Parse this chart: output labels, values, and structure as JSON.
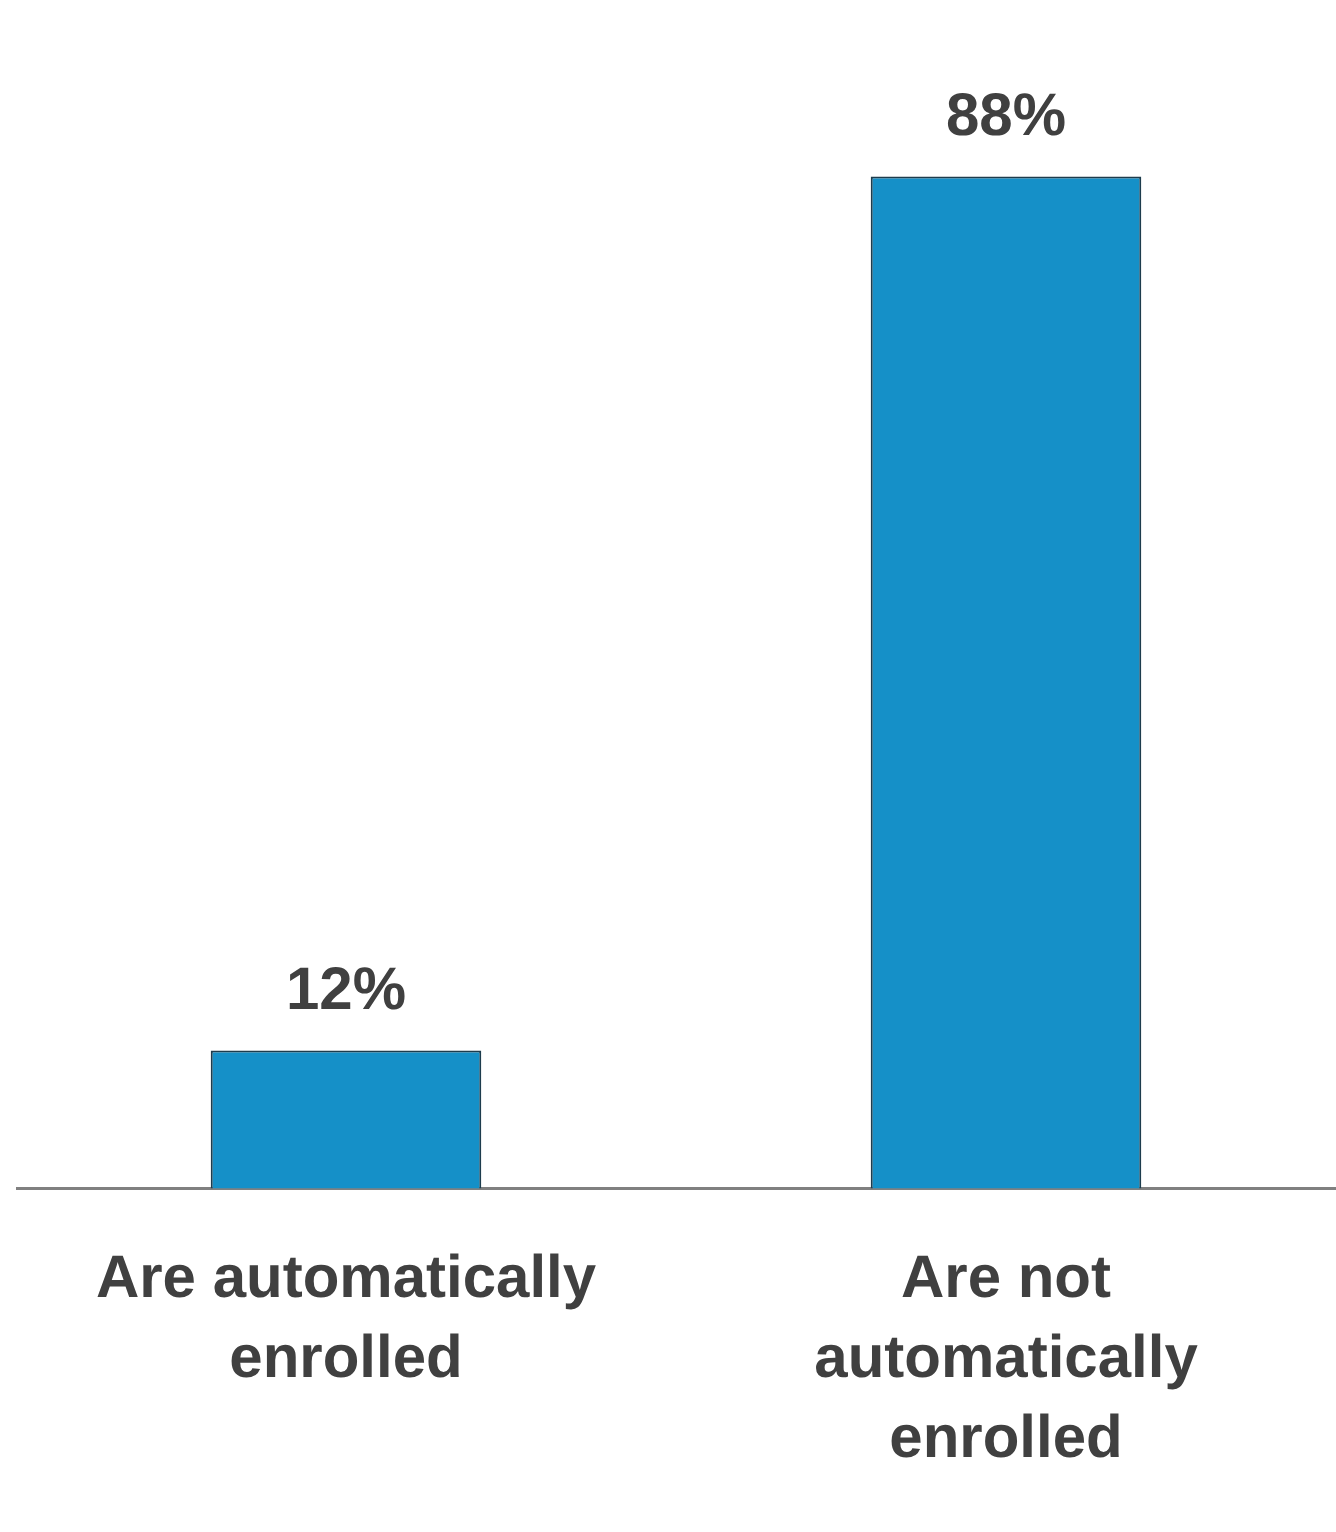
{
  "chart_data": {
    "type": "bar",
    "categories": [
      "Are automatically enrolled",
      "Are not automatically enrolled"
    ],
    "values": [
      12,
      88
    ],
    "value_labels": [
      "12%",
      "88%"
    ],
    "color": "#1590c8",
    "grid": false,
    "legend": false,
    "tick_labels": "x"
  }
}
